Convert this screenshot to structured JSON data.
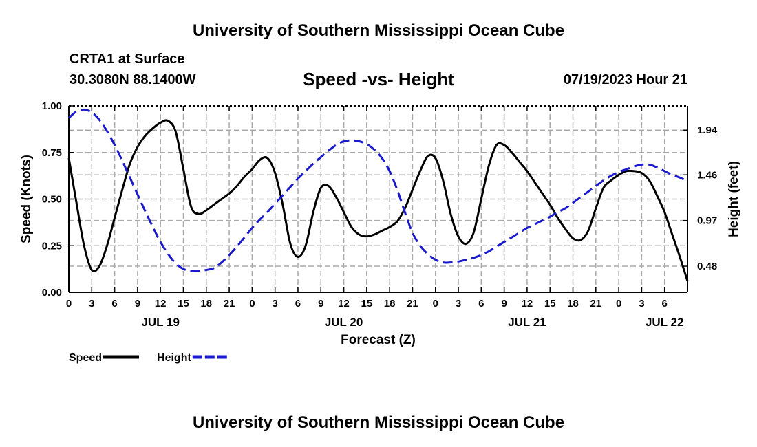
{
  "header": {
    "title": "University of Southern Mississippi Ocean Cube",
    "station": "CRTA1 at Surface",
    "coords": "30.3080N  88.1400W",
    "chart_title": "Speed -vs- Height",
    "datetime": "07/19/2023 Hour 21"
  },
  "footer": {
    "title": "University of Southern Mississippi Ocean Cube"
  },
  "colors": {
    "speed": "#000000",
    "height": "#1a1acc",
    "grid": "#aaaaaa"
  },
  "chart_data": {
    "type": "line",
    "title": "Speed -vs- Height",
    "xlabel": "Forecast (Z)",
    "ylabel": "Speed (Knots)",
    "y2label": "Height (feet)",
    "xlim": [
      0,
      81
    ],
    "ylim": [
      0,
      1.0
    ],
    "y2lim": [
      0.2,
      2.2
    ],
    "grid": true,
    "legend_position": "bottom-left",
    "x_ticks": [
      {
        "h": 0,
        "label": "0"
      },
      {
        "h": 3,
        "label": "3"
      },
      {
        "h": 6,
        "label": "6"
      },
      {
        "h": 9,
        "label": "9"
      },
      {
        "h": 12,
        "label": "12"
      },
      {
        "h": 15,
        "label": "15"
      },
      {
        "h": 18,
        "label": "18"
      },
      {
        "h": 21,
        "label": "21"
      },
      {
        "h": 24,
        "label": "0"
      },
      {
        "h": 27,
        "label": "3"
      },
      {
        "h": 30,
        "label": "6"
      },
      {
        "h": 33,
        "label": "9"
      },
      {
        "h": 36,
        "label": "12"
      },
      {
        "h": 39,
        "label": "15"
      },
      {
        "h": 42,
        "label": "18"
      },
      {
        "h": 45,
        "label": "21"
      },
      {
        "h": 48,
        "label": "0"
      },
      {
        "h": 51,
        "label": "3"
      },
      {
        "h": 54,
        "label": "6"
      },
      {
        "h": 57,
        "label": "9"
      },
      {
        "h": 60,
        "label": "12"
      },
      {
        "h": 63,
        "label": "15"
      },
      {
        "h": 66,
        "label": "18"
      },
      {
        "h": 69,
        "label": "21"
      },
      {
        "h": 72,
        "label": "0"
      },
      {
        "h": 75,
        "label": "3"
      },
      {
        "h": 78,
        "label": "6"
      }
    ],
    "day_labels": [
      {
        "h": 12,
        "label": "JUL 19"
      },
      {
        "h": 36,
        "label": "JUL 20"
      },
      {
        "h": 60,
        "label": "JUL 21"
      },
      {
        "h": 78,
        "label": "JUL 22"
      }
    ],
    "y_ticks": [
      {
        "v": 0.0,
        "label": "0.00"
      },
      {
        "v": 0.25,
        "label": "0.25"
      },
      {
        "v": 0.5,
        "label": "0.50"
      },
      {
        "v": 0.75,
        "label": "0.75"
      },
      {
        "v": 1.0,
        "label": "1.00"
      }
    ],
    "y2_ticks": [
      {
        "v": 0.48,
        "label": "0.48"
      },
      {
        "v": 0.97,
        "label": "0.97"
      },
      {
        "v": 1.46,
        "label": "1.46"
      },
      {
        "v": 1.94,
        "label": "1.94"
      }
    ],
    "legend": [
      {
        "name": "Speed",
        "color": "#000000",
        "dash": false
      },
      {
        "name": "Height",
        "color": "#1a1acc",
        "dash": true
      }
    ],
    "series": [
      {
        "name": "Speed",
        "axis": "left",
        "color": "#000000",
        "dash": false,
        "points": [
          [
            0,
            0.72
          ],
          [
            1,
            0.48
          ],
          [
            2,
            0.25
          ],
          [
            3,
            0.12
          ],
          [
            4,
            0.14
          ],
          [
            5,
            0.25
          ],
          [
            6,
            0.4
          ],
          [
            7,
            0.55
          ],
          [
            8,
            0.69
          ],
          [
            9,
            0.78
          ],
          [
            10,
            0.84
          ],
          [
            11,
            0.88
          ],
          [
            12,
            0.91
          ],
          [
            13,
            0.92
          ],
          [
            14,
            0.86
          ],
          [
            15,
            0.66
          ],
          [
            16,
            0.46
          ],
          [
            17,
            0.42
          ],
          [
            18,
            0.44
          ],
          [
            19,
            0.47
          ],
          [
            20,
            0.5
          ],
          [
            21,
            0.53
          ],
          [
            22,
            0.57
          ],
          [
            23,
            0.62
          ],
          [
            24,
            0.66
          ],
          [
            25,
            0.71
          ],
          [
            26,
            0.72
          ],
          [
            27,
            0.64
          ],
          [
            28,
            0.47
          ],
          [
            29,
            0.26
          ],
          [
            30,
            0.19
          ],
          [
            31,
            0.25
          ],
          [
            32,
            0.43
          ],
          [
            33,
            0.56
          ],
          [
            34,
            0.57
          ],
          [
            35,
            0.51
          ],
          [
            36,
            0.43
          ],
          [
            37,
            0.35
          ],
          [
            38,
            0.31
          ],
          [
            39,
            0.3
          ],
          [
            40,
            0.31
          ],
          [
            41,
            0.33
          ],
          [
            42,
            0.35
          ],
          [
            43,
            0.38
          ],
          [
            44,
            0.45
          ],
          [
            45,
            0.55
          ],
          [
            46,
            0.65
          ],
          [
            47,
            0.73
          ],
          [
            48,
            0.72
          ],
          [
            49,
            0.6
          ],
          [
            50,
            0.42
          ],
          [
            51,
            0.3
          ],
          [
            52,
            0.26
          ],
          [
            53,
            0.32
          ],
          [
            54,
            0.5
          ],
          [
            55,
            0.68
          ],
          [
            56,
            0.79
          ],
          [
            57,
            0.79
          ],
          [
            58,
            0.75
          ],
          [
            59,
            0.7
          ],
          [
            60,
            0.65
          ],
          [
            61,
            0.59
          ],
          [
            62,
            0.53
          ],
          [
            63,
            0.47
          ],
          [
            64,
            0.4
          ],
          [
            65,
            0.34
          ],
          [
            66,
            0.29
          ],
          [
            67,
            0.28
          ],
          [
            68,
            0.33
          ],
          [
            69,
            0.45
          ],
          [
            70,
            0.56
          ],
          [
            71,
            0.6
          ],
          [
            72,
            0.63
          ],
          [
            73,
            0.65
          ],
          [
            74,
            0.65
          ],
          [
            75,
            0.64
          ],
          [
            76,
            0.6
          ],
          [
            77,
            0.52
          ],
          [
            78,
            0.43
          ],
          [
            79,
            0.31
          ],
          [
            80,
            0.19
          ],
          [
            81,
            0.06
          ]
        ]
      },
      {
        "name": "Height",
        "axis": "right",
        "color": "#1a1acc",
        "dash": true,
        "points": [
          [
            0,
            2.07
          ],
          [
            1,
            2.14
          ],
          [
            2,
            2.16
          ],
          [
            3,
            2.13
          ],
          [
            4,
            2.05
          ],
          [
            5,
            1.93
          ],
          [
            6,
            1.78
          ],
          [
            7,
            1.61
          ],
          [
            8,
            1.43
          ],
          [
            9,
            1.25
          ],
          [
            10,
            1.07
          ],
          [
            11,
            0.9
          ],
          [
            12,
            0.74
          ],
          [
            13,
            0.61
          ],
          [
            14,
            0.51
          ],
          [
            15,
            0.45
          ],
          [
            16,
            0.43
          ],
          [
            17,
            0.43
          ],
          [
            18,
            0.44
          ],
          [
            19,
            0.46
          ],
          [
            20,
            0.52
          ],
          [
            21,
            0.6
          ],
          [
            22,
            0.69
          ],
          [
            23,
            0.79
          ],
          [
            24,
            0.89
          ],
          [
            25,
            0.98
          ],
          [
            26,
            1.06
          ],
          [
            27,
            1.15
          ],
          [
            28,
            1.24
          ],
          [
            29,
            1.33
          ],
          [
            30,
            1.42
          ],
          [
            31,
            1.5
          ],
          [
            32,
            1.58
          ],
          [
            33,
            1.65
          ],
          [
            34,
            1.72
          ],
          [
            35,
            1.78
          ],
          [
            36,
            1.82
          ],
          [
            37,
            1.83
          ],
          [
            38,
            1.82
          ],
          [
            39,
            1.79
          ],
          [
            40,
            1.73
          ],
          [
            41,
            1.64
          ],
          [
            42,
            1.5
          ],
          [
            43,
            1.3
          ],
          [
            44,
            1.06
          ],
          [
            45,
            0.84
          ],
          [
            46,
            0.7
          ],
          [
            47,
            0.61
          ],
          [
            48,
            0.55
          ],
          [
            49,
            0.52
          ],
          [
            50,
            0.52
          ],
          [
            51,
            0.53
          ],
          [
            52,
            0.55
          ],
          [
            53,
            0.57
          ],
          [
            54,
            0.6
          ],
          [
            55,
            0.64
          ],
          [
            56,
            0.69
          ],
          [
            57,
            0.74
          ],
          [
            58,
            0.79
          ],
          [
            59,
            0.84
          ],
          [
            60,
            0.89
          ],
          [
            61,
            0.93
          ],
          [
            62,
            0.97
          ],
          [
            63,
            1.01
          ],
          [
            64,
            1.06
          ],
          [
            65,
            1.1
          ],
          [
            66,
            1.16
          ],
          [
            67,
            1.22
          ],
          [
            68,
            1.28
          ],
          [
            69,
            1.34
          ],
          [
            70,
            1.4
          ],
          [
            71,
            1.45
          ],
          [
            72,
            1.49
          ],
          [
            73,
            1.52
          ],
          [
            74,
            1.55
          ],
          [
            75,
            1.57
          ],
          [
            76,
            1.57
          ],
          [
            77,
            1.54
          ],
          [
            78,
            1.5
          ],
          [
            79,
            1.46
          ],
          [
            80,
            1.43
          ],
          [
            81,
            1.39
          ]
        ]
      }
    ]
  }
}
